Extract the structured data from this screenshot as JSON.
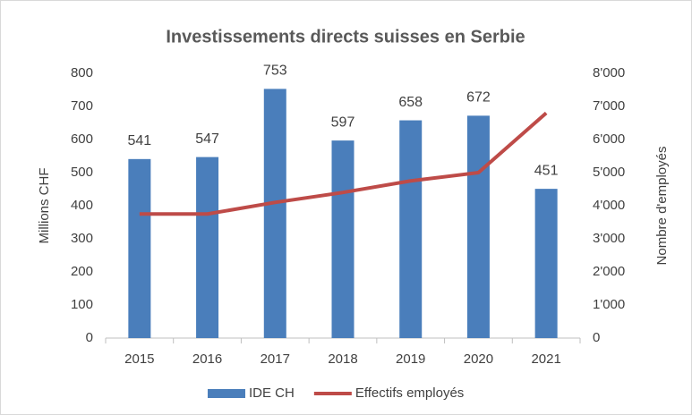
{
  "chart_data": {
    "type": "bar",
    "title": "Investissements directs suisses en Serbie",
    "y_label": "Millions CHF",
    "y2_label": "Nombre d'employés",
    "categories": [
      "2015",
      "2016",
      "2017",
      "2018",
      "2019",
      "2020",
      "2021"
    ],
    "series": [
      {
        "name": "IDE CH",
        "type": "bar",
        "color": "#4a7ebb",
        "values": [
          541,
          547,
          753,
          597,
          658,
          672,
          451
        ]
      },
      {
        "name": "Effectifs employés",
        "type": "line",
        "axis": "y2",
        "color": "#be4b48",
        "values": [
          3750,
          3750,
          4100,
          4400,
          4750,
          5000,
          6800
        ]
      }
    ],
    "ylim": [
      0,
      800
    ],
    "yticks": [
      0,
      100,
      200,
      300,
      400,
      500,
      600,
      700,
      800
    ],
    "y2lim": [
      0,
      8000
    ],
    "y2ticks": [
      0,
      {
        "value": 1000,
        "label": "1'000"
      },
      {
        "value": 2000,
        "label": "2'000"
      },
      {
        "value": 3000,
        "label": "3'000"
      },
      {
        "value": 4000,
        "label": "4'000"
      },
      {
        "value": 5000,
        "label": "5'000"
      },
      {
        "value": 6000,
        "label": "6'000"
      },
      {
        "value": 7000,
        "label": "7'000"
      },
      {
        "value": 8000,
        "label": "8'000"
      }
    ],
    "legend": "bottom"
  }
}
